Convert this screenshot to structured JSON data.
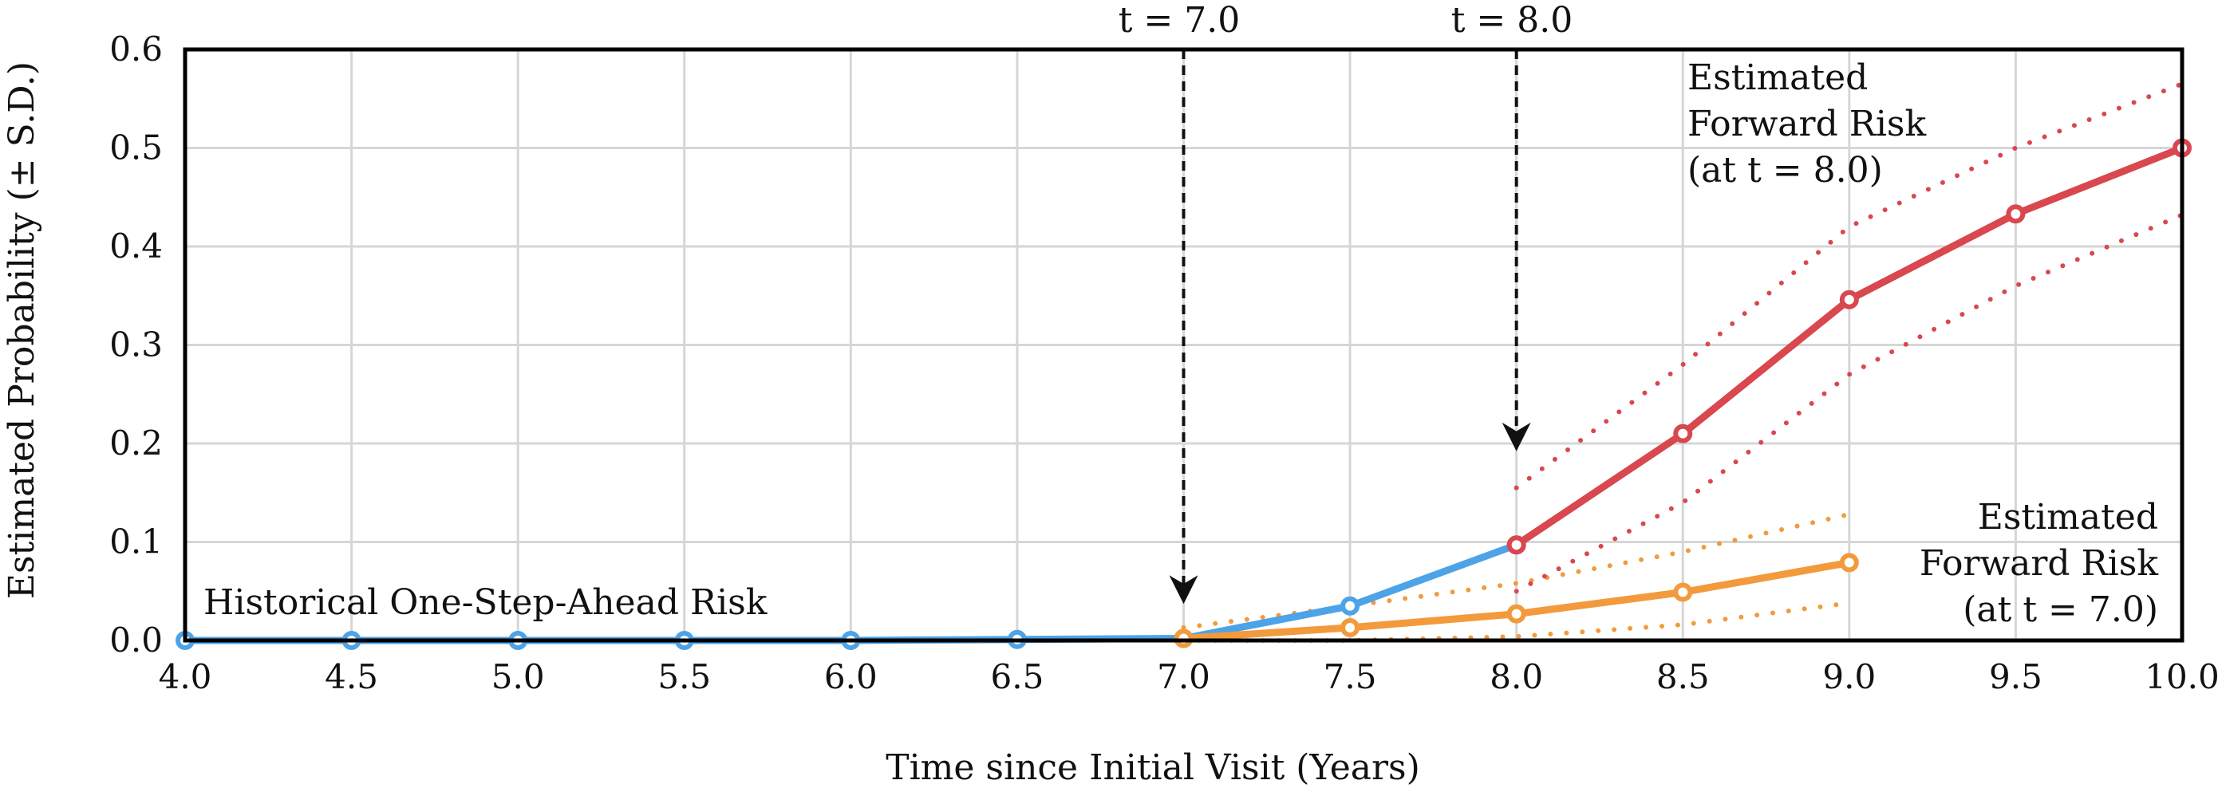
{
  "chart_data": {
    "type": "line",
    "xlabel": "Time since Initial Visit (Years)",
    "ylabel": "Estimated Probability (± S.D.)",
    "xlim": [
      4.0,
      10.0
    ],
    "ylim": [
      0.0,
      0.6
    ],
    "x_ticks": [
      "4.0",
      "4.5",
      "5.0",
      "5.5",
      "6.0",
      "6.5",
      "7.0",
      "7.5",
      "8.0",
      "8.5",
      "9.0",
      "9.5",
      "10.0"
    ],
    "y_ticks": [
      "0.0",
      "0.1",
      "0.2",
      "0.3",
      "0.4",
      "0.5",
      "0.6"
    ],
    "grid": true,
    "series": [
      {
        "key": "historical",
        "color": "#4da3e8",
        "x": [
          4.0,
          4.5,
          5.0,
          5.5,
          6.0,
          6.5,
          7.0,
          7.5,
          8.0
        ],
        "y": [
          0.0,
          0.0,
          0.0,
          0.0,
          0.0,
          0.001,
          0.002,
          0.035,
          0.097
        ]
      },
      {
        "key": "forward_t7",
        "color": "#f29a3c",
        "x": [
          7.0,
          7.5,
          8.0,
          8.5,
          9.0
        ],
        "y": [
          0.002,
          0.013,
          0.027,
          0.049,
          0.079
        ],
        "upper": [
          0.013,
          0.035,
          0.058,
          0.09,
          0.128
        ],
        "lower": [
          0.0,
          0.0,
          0.004,
          0.016,
          0.038
        ]
      },
      {
        "key": "forward_t8",
        "color": "#d9474f",
        "x": [
          8.0,
          8.5,
          9.0,
          9.5,
          10.0
        ],
        "y": [
          0.097,
          0.21,
          0.346,
          0.433,
          0.5
        ],
        "upper": [
          0.155,
          0.28,
          0.42,
          0.5,
          0.565
        ],
        "lower": [
          0.05,
          0.14,
          0.27,
          0.36,
          0.432
        ]
      }
    ],
    "annotations": {
      "historical_label": "Historical One-Step-Ahead Risk",
      "forward_t8_label": [
        "Estimated",
        "Forward Risk",
        "(at t = 8.0)"
      ],
      "forward_t7_label": [
        "Estimated",
        "Forward Risk",
        "(at t = 7.0)"
      ],
      "marker_t7": "t = 7.0",
      "marker_t8": "t = 8.0"
    },
    "markers": [
      {
        "x": 7.0,
        "arrow_to_y": 0.04
      },
      {
        "x": 8.0,
        "arrow_to_y": 0.195
      }
    ]
  }
}
